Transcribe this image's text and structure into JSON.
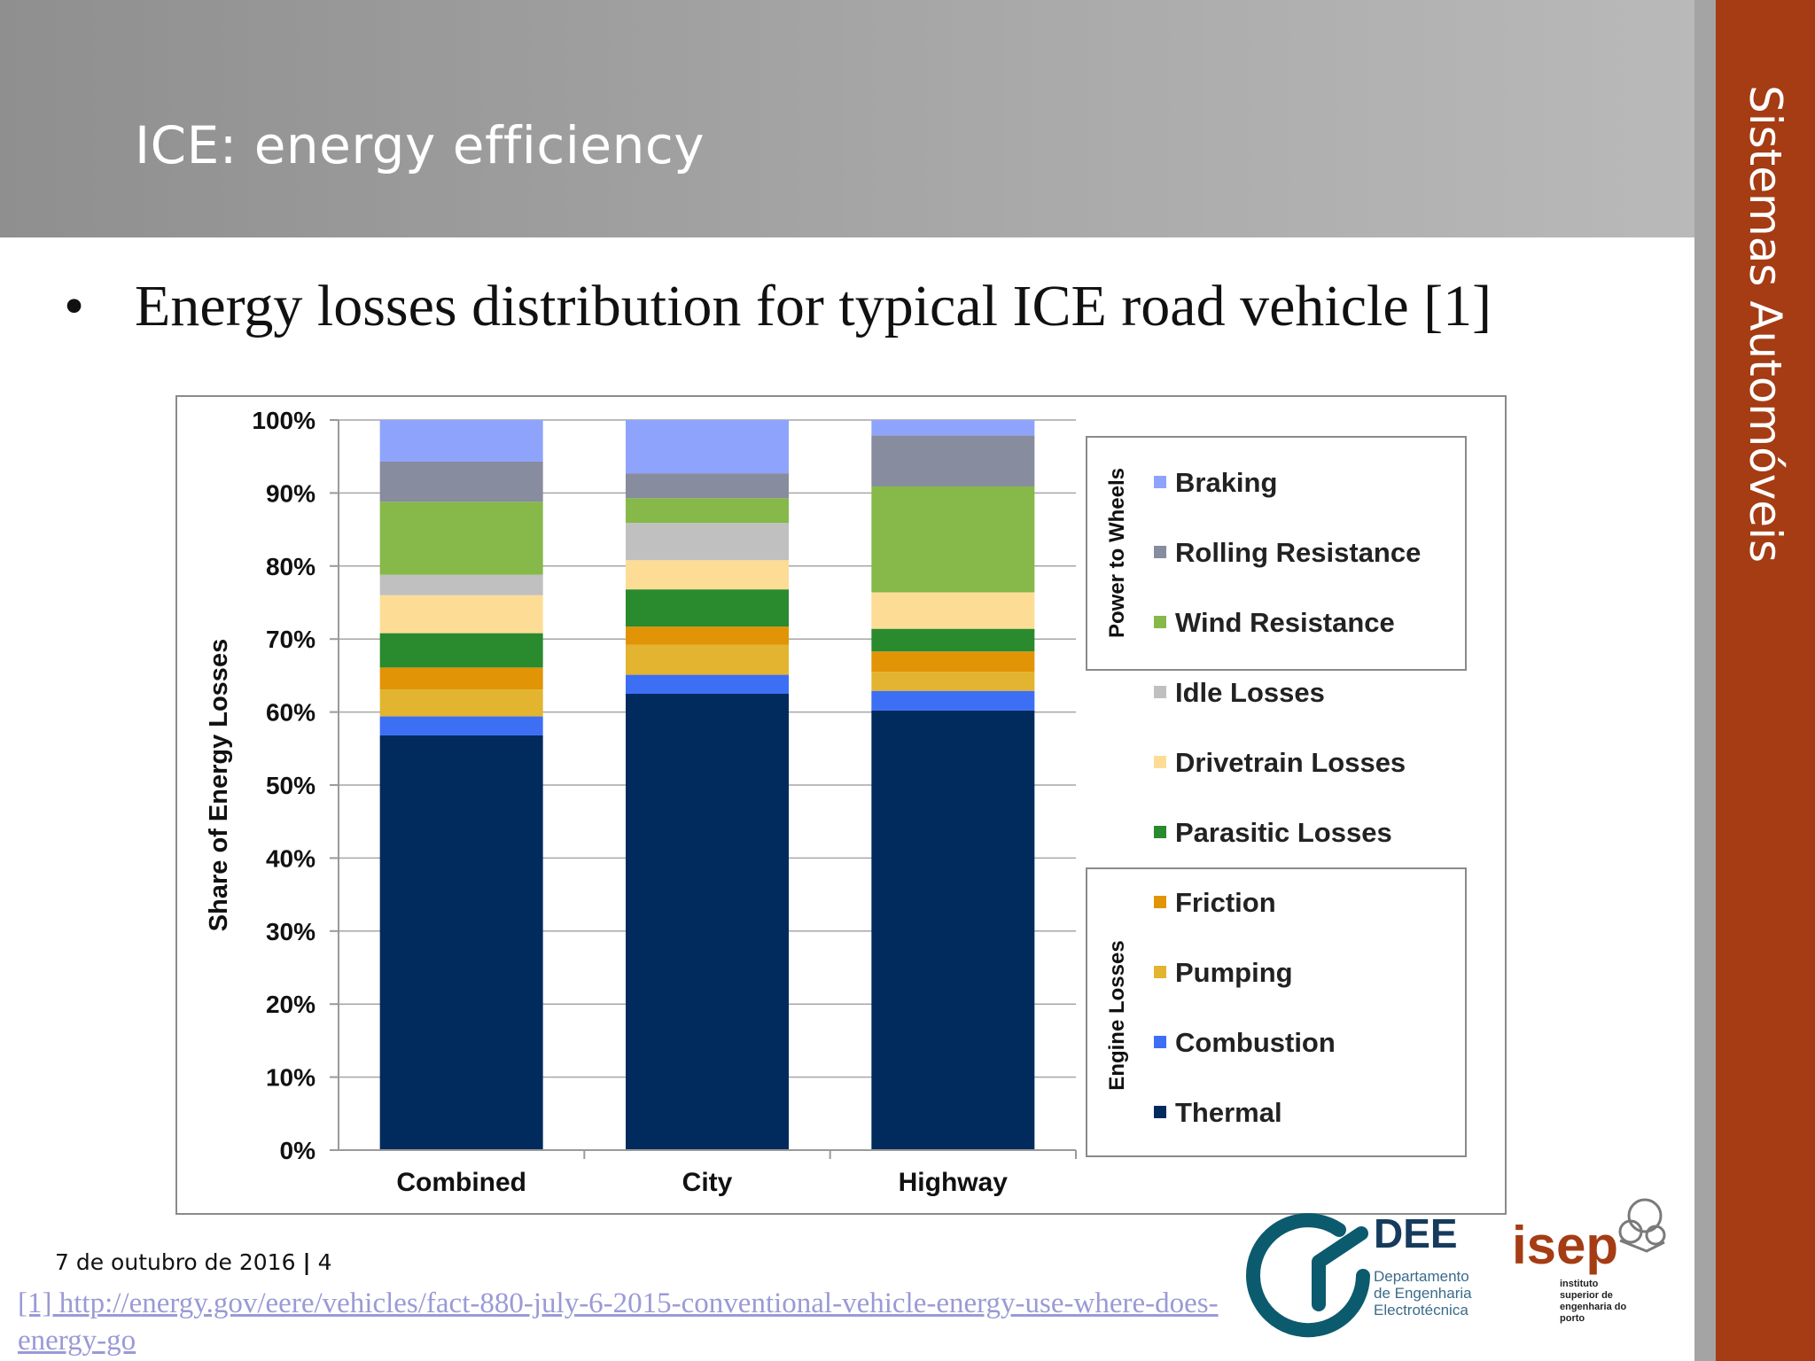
{
  "slide": {
    "title": "ICE: energy efficiency",
    "side_label": "Sistemas Automóveis",
    "bullet": "Energy losses distribution for typical ICE road vehicle [1]",
    "footer_date": "7 de outubro de 2016",
    "footer_sep": "|",
    "page_number": "4",
    "reference": "[1] http://energy.gov/eere/vehicles/fact-880-july-6-2015-conventional-vehicle-energy-use-where-does-energy-go"
  },
  "logos": {
    "dee_name": "DEE",
    "dee_line1": "Departamento",
    "dee_line2": "de Engenharia",
    "dee_line3": "Electrotécnica",
    "isep_name": "isep",
    "isep_line1": "instituto",
    "isep_line2": "superior de",
    "isep_line3": "engenharia do",
    "isep_line4": "porto"
  },
  "chart_data": {
    "type": "bar",
    "stacked": true,
    "title": "",
    "xlabel": "",
    "ylabel": "Share of Energy Losses",
    "ylim": [
      0,
      100
    ],
    "y_ticks": [
      "0%",
      "10%",
      "20%",
      "30%",
      "40%",
      "50%",
      "60%",
      "70%",
      "80%",
      "90%",
      "100%"
    ],
    "categories": [
      "Combined",
      "City",
      "Highway"
    ],
    "series": [
      {
        "name": "Thermal",
        "color": "#002b5c",
        "values": [
          56.8,
          62.5,
          60.2
        ]
      },
      {
        "name": "Combustion",
        "color": "#3d6ff5",
        "values": [
          2.6,
          2.6,
          2.7
        ]
      },
      {
        "name": "Pumping",
        "color": "#e2b42f",
        "values": [
          3.7,
          4.1,
          2.6
        ]
      },
      {
        "name": "Friction",
        "color": "#e19406",
        "values": [
          3.0,
          2.5,
          2.8
        ]
      },
      {
        "name": "Parasitic Losses",
        "color": "#2a8a2e",
        "values": [
          4.7,
          5.1,
          3.1
        ]
      },
      {
        "name": "Drivetrain Losses",
        "color": "#fddd95",
        "values": [
          5.2,
          4.0,
          5.0
        ]
      },
      {
        "name": "Idle Losses",
        "color": "#c0c0c0",
        "values": [
          2.8,
          5.1,
          0.0
        ]
      },
      {
        "name": "Wind Resistance",
        "color": "#86b84a",
        "values": [
          10.0,
          3.4,
          14.5
        ]
      },
      {
        "name": "Rolling Resistance",
        "color": "#878c9e",
        "values": [
          5.5,
          3.4,
          7.0
        ]
      },
      {
        "name": "Braking",
        "color": "#8ea3fb",
        "values": [
          5.7,
          7.3,
          2.1
        ]
      }
    ],
    "legend": {
      "placement": "right",
      "order": [
        "Braking",
        "Rolling Resistance",
        "Wind Resistance",
        "Idle Losses",
        "Drivetrain Losses",
        "Parasitic Losses",
        "Friction",
        "Pumping",
        "Combustion",
        "Thermal"
      ],
      "groups": [
        {
          "label": "Power to Wheels",
          "members": [
            "Braking",
            "Rolling Resistance",
            "Wind Resistance"
          ]
        },
        {
          "label": "Engine Losses",
          "members": [
            "Friction",
            "Pumping",
            "Combustion",
            "Thermal"
          ]
        }
      ]
    },
    "grid": true
  }
}
